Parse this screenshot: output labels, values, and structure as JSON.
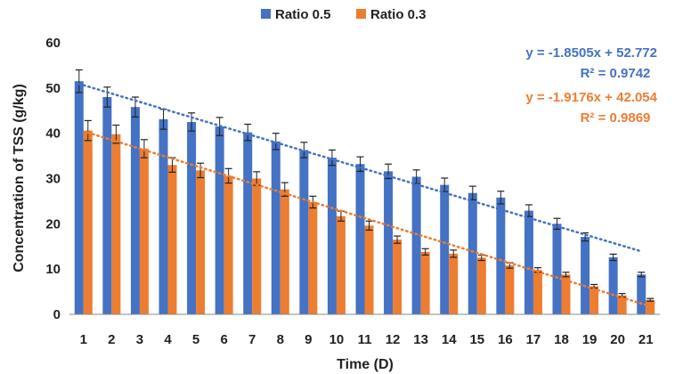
{
  "chart_data": {
    "type": "bar",
    "xlabel": "Time (D)",
    "ylabel": "Concentration of TSS (g/kg)",
    "ylim": [
      0,
      60
    ],
    "yticks": [
      0,
      10,
      20,
      30,
      40,
      50,
      60
    ],
    "categories": [
      "1",
      "2",
      "3",
      "4",
      "5",
      "6",
      "7",
      "8",
      "9",
      "10",
      "11",
      "12",
      "13",
      "14",
      "15",
      "16",
      "17",
      "18",
      "19",
      "20",
      "21"
    ],
    "legend_position": "top",
    "grid": false,
    "series": [
      {
        "name": "Ratio 0.5",
        "color": "#4472C4",
        "values": [
          51.5,
          48.0,
          45.8,
          43.1,
          42.5,
          41.5,
          40.2,
          38.2,
          36.3,
          34.6,
          33.2,
          31.6,
          30.4,
          28.6,
          26.8,
          25.8,
          22.9,
          20.0,
          17.1,
          12.6,
          8.8
        ],
        "errors": [
          2.5,
          2.2,
          2.2,
          2.2,
          2.0,
          2.0,
          1.8,
          1.8,
          1.7,
          1.7,
          1.6,
          1.6,
          1.5,
          1.5,
          1.5,
          1.4,
          1.3,
          1.2,
          0.9,
          0.7,
          0.5
        ],
        "trendline": {
          "slope": -1.8505,
          "intercept": 52.772,
          "equation": "y = -1.8505x + 52.772",
          "r2_label": "R² = 0.9742"
        }
      },
      {
        "name": "Ratio 0.3",
        "color": "#ED7D31",
        "values": [
          40.6,
          39.8,
          36.6,
          33.0,
          31.8,
          30.6,
          30.0,
          27.6,
          24.8,
          21.7,
          19.6,
          16.5,
          13.8,
          13.4,
          12.5,
          10.8,
          9.8,
          8.8,
          6.2,
          4.2,
          3.2
        ],
        "errors": [
          2.2,
          2.0,
          2.0,
          1.6,
          1.6,
          1.6,
          1.5,
          1.5,
          1.3,
          1.1,
          1.0,
          0.8,
          0.7,
          0.8,
          0.6,
          0.6,
          0.5,
          0.5,
          0.4,
          0.4,
          0.3
        ],
        "trendline": {
          "slope": -1.9176,
          "intercept": 42.054,
          "equation": "y = -1.9176x + 42.054",
          "r2_label": "R² = 0.9869"
        }
      }
    ]
  }
}
